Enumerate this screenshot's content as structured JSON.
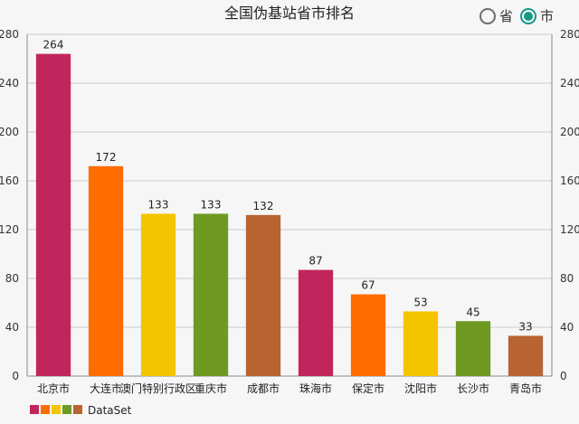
{
  "chart_data": {
    "type": "bar",
    "title": "全国伪基站省市排名",
    "categories": [
      "北京市",
      "大连市",
      "澳门特别行政区",
      "重庆市",
      "成都市",
      "珠海市",
      "保定市",
      "沈阳市",
      "长沙市",
      "青岛市"
    ],
    "series": [
      {
        "name": "DataSet",
        "values": [
          264,
          172,
          133,
          133,
          132,
          87,
          67,
          53,
          45,
          33
        ]
      }
    ],
    "ylim": [
      0,
      280
    ],
    "yticks": [
      0,
      40,
      80,
      120,
      160,
      200,
      240,
      280
    ],
    "y_axis_left": true,
    "y_axis_right": true,
    "grid": true,
    "data_labels": true,
    "legend": "bottom-left",
    "xlabel": "",
    "ylabel": ""
  },
  "colors": [
    "#c2255c",
    "#ff6d00",
    "#f5c400",
    "#6e9a22",
    "#b86332"
  ],
  "toggle": {
    "options": [
      {
        "label": "省",
        "checked": false
      },
      {
        "label": "市",
        "checked": true
      }
    ]
  }
}
